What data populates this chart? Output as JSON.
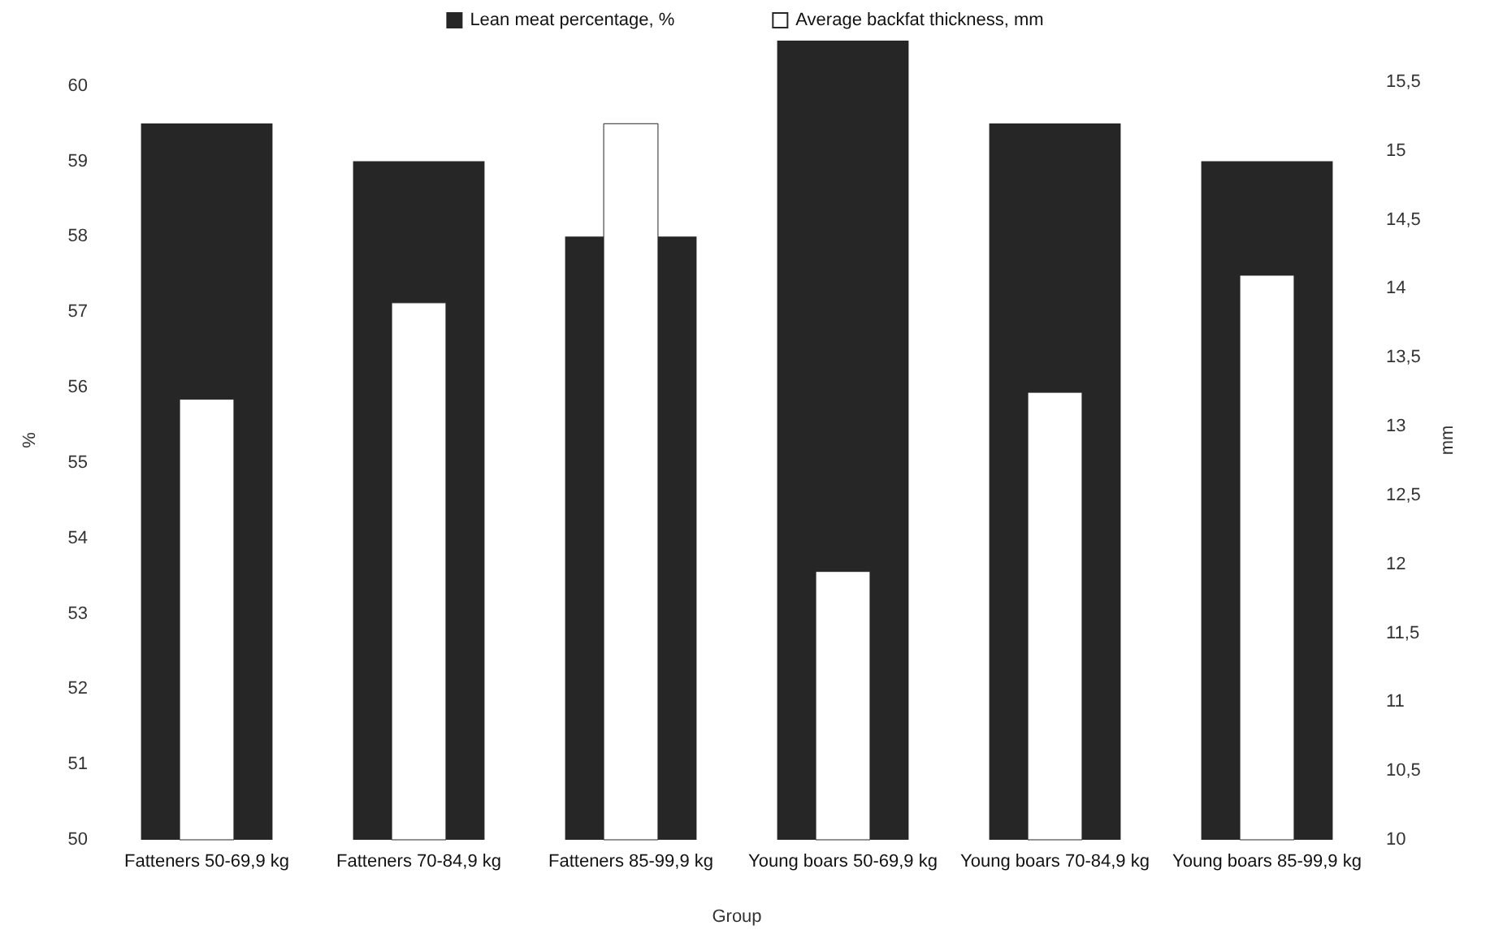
{
  "chart_data": {
    "type": "bar",
    "xlabel": "Group",
    "ylabel": "%",
    "y2label": "mm",
    "categories": [
      "Fatteners 50-69,9 kg",
      "Fatteners 70-84,9 kg",
      "Fatteners 85-99,9 kg",
      "Young boars 50-69,9 kg",
      "Young boars 70-84,9 kg",
      "Young boars 85-99,9 kg"
    ],
    "series": [
      {
        "name": "Lean meat percentage, %",
        "color": "#262626",
        "values": [
          59.5,
          59.0,
          58.0,
          60.6,
          59.5,
          59.0
        ]
      },
      {
        "name": "Average backfat thickness, mm",
        "color": "#ffffff",
        "axis": "y2",
        "values": [
          13.2,
          13.9,
          15.2,
          11.95,
          13.25,
          14.1
        ]
      }
    ],
    "ylim": [
      50,
      60.6
    ],
    "yticks": [
      50,
      51,
      52,
      53,
      54,
      55,
      56,
      57,
      58,
      59,
      60
    ],
    "y2lim": [
      10,
      15.8
    ],
    "y2ticks": [
      {
        "value": 10,
        "label": "10"
      },
      {
        "value": 10.5,
        "label": "10,5"
      },
      {
        "value": 11,
        "label": "11"
      },
      {
        "value": 11.5,
        "label": "11,5"
      },
      {
        "value": 12,
        "label": "12"
      },
      {
        "value": 12.5,
        "label": "12,5"
      },
      {
        "value": 13,
        "label": "13"
      },
      {
        "value": 13.5,
        "label": "13,5"
      },
      {
        "value": 14,
        "label": "14"
      },
      {
        "value": 14.5,
        "label": "14,5"
      },
      {
        "value": 15,
        "label": "15"
      },
      {
        "value": 15.5,
        "label": "15,5"
      }
    ],
    "grid": false,
    "legend": "top"
  }
}
